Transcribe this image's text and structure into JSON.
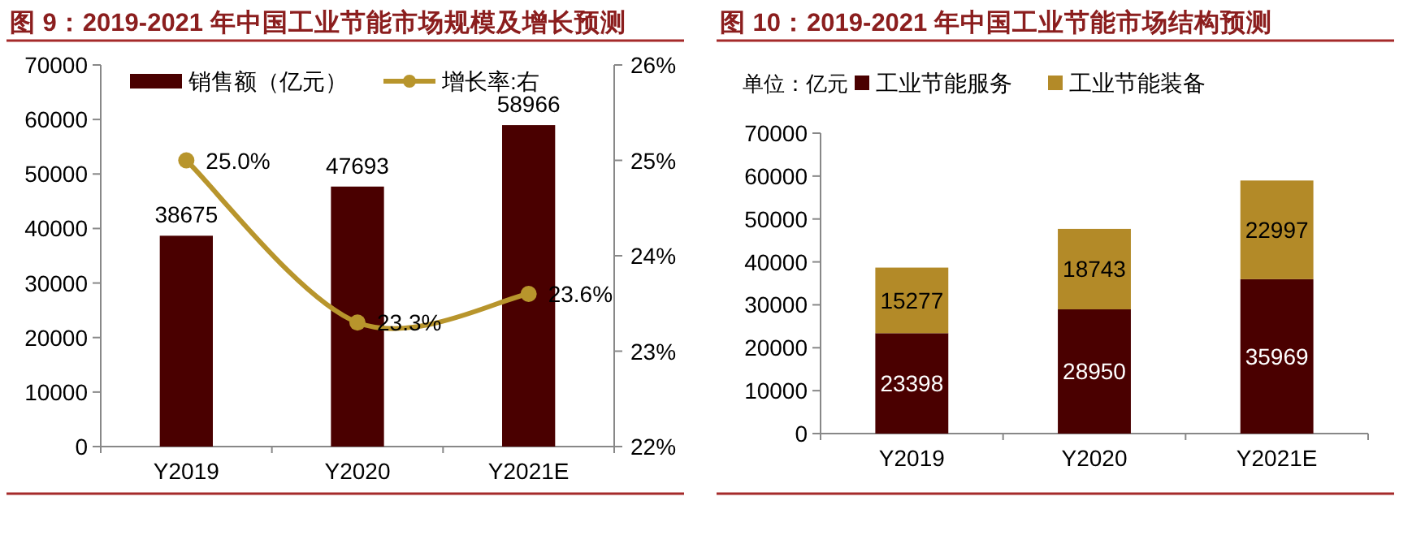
{
  "chart_data": [
    {
      "type": "bar",
      "title": "图 9：2019-2021 年中国工业节能市场规模及增长预测",
      "categories": [
        "Y2019",
        "Y2020",
        "Y2021E"
      ],
      "series": [
        {
          "name": "销售额（亿元）",
          "color": "#4a0000",
          "values": [
            38675,
            47693,
            58966
          ],
          "value_labels": [
            "38675",
            "47693",
            "58966"
          ]
        },
        {
          "name": "增长率:右",
          "type": "line",
          "axis": "y2",
          "marker": "circle",
          "color": "#b8952c",
          "values": [
            25.0,
            23.3,
            23.6
          ],
          "value_labels": [
            "25.0%",
            "23.3%",
            "23.6%"
          ]
        }
      ],
      "ylim": [
        0,
        70000
      ],
      "yticks": [
        0,
        10000,
        20000,
        30000,
        40000,
        50000,
        60000,
        70000
      ],
      "y2lim": [
        22,
        26
      ],
      "y2ticks": [
        {
          "value": 22,
          "label": "22%"
        },
        {
          "value": 23,
          "label": "23%"
        },
        {
          "value": 24,
          "label": "24%"
        },
        {
          "value": 25,
          "label": "25%"
        },
        {
          "value": 26,
          "label": "26%"
        }
      ],
      "legend": "top"
    },
    {
      "type": "bar",
      "title": "图 10：2019-2021 年中国工业节能市场结构预测",
      "annotations": [
        "单位：亿元"
      ],
      "categories": [
        "Y2019",
        "Y2020",
        "Y2021E"
      ],
      "stacked": true,
      "data_labels": true,
      "series": [
        {
          "name": "工业节能服务",
          "color": "#4a0000",
          "values": [
            23398,
            28950,
            35969
          ]
        },
        {
          "name": "工业节能装备",
          "color": "#b38a28",
          "values": [
            15277,
            18743,
            22997
          ]
        }
      ],
      "ylim": [
        0,
        70000
      ],
      "yticks": [
        0,
        10000,
        20000,
        30000,
        40000,
        50000,
        60000,
        70000
      ],
      "legend": "top"
    }
  ]
}
